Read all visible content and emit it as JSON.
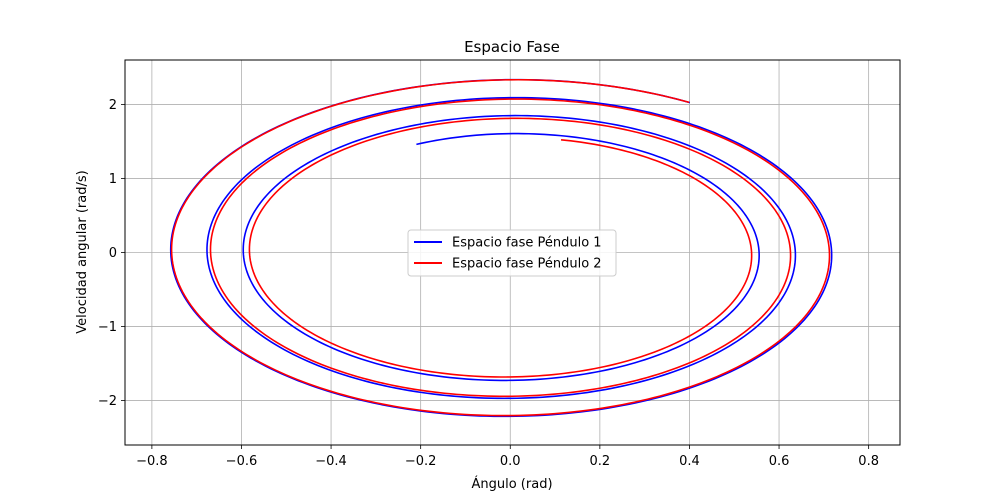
{
  "chart_data": {
    "type": "line",
    "title": "Espacio Fase",
    "xlabel": "Ángulo (rad)",
    "ylabel": "Velocidad angular (rad/s)",
    "xlim": [
      -0.86,
      0.87
    ],
    "ylim": [
      -2.6,
      2.6
    ],
    "xticks": [
      -0.8,
      -0.6,
      -0.4,
      -0.2,
      0.0,
      0.2,
      0.4,
      0.6,
      0.8
    ],
    "xtick_labels": [
      "−0.8",
      "−0.6",
      "−0.4",
      "−0.2",
      "0.0",
      "0.2",
      "0.4",
      "0.6",
      "0.8"
    ],
    "yticks": [
      -2,
      -1,
      0,
      1,
      2
    ],
    "ytick_labels": [
      "−2",
      "−1",
      "0",
      "1",
      "2"
    ],
    "grid": true,
    "legend_position": "center",
    "series": [
      {
        "name": "Espacio fase Péndulo 1",
        "color": "#0000ff",
        "theta0": 0.4,
        "omega0": 2.02,
        "amplitude_start": 0.785,
        "amplitude_end": 0.53,
        "omega_per_rad": 3.0,
        "revolutions": 3.15
      },
      {
        "name": "Espacio fase Péndulo 2",
        "color": "#ff0000",
        "theta0": 0.4,
        "omega0": 2.03,
        "amplitude_start": 0.785,
        "amplitude_end": 0.52,
        "omega_per_rad": 3.0,
        "revolutions": 3.05
      }
    ]
  }
}
